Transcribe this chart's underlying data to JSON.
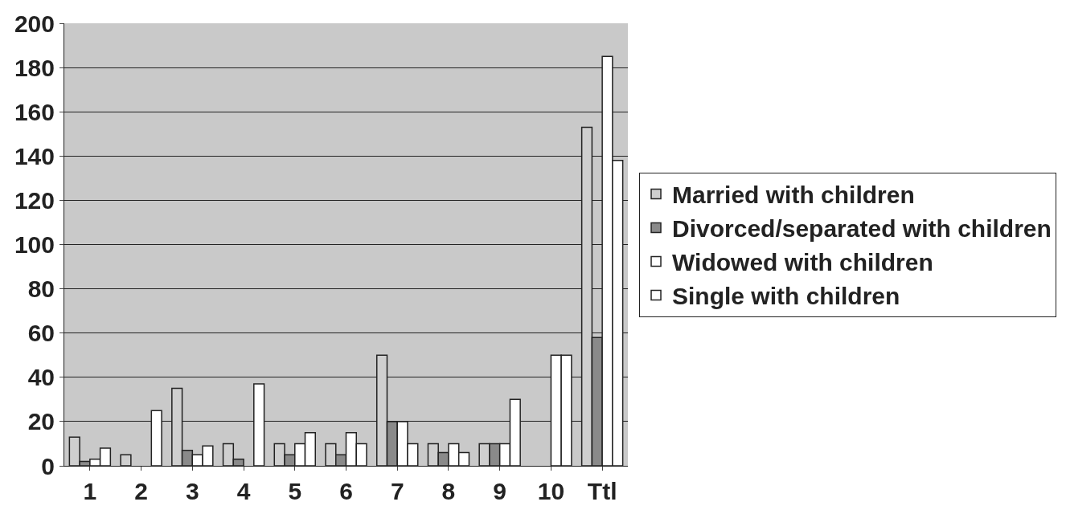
{
  "chart_data": {
    "type": "bar",
    "categories": [
      "1",
      "2",
      "3",
      "4",
      "5",
      "6",
      "7",
      "8",
      "9",
      "10",
      "Ttl"
    ],
    "series": [
      {
        "name": "Married with children",
        "color": "#cfcfcf",
        "values": [
          13,
          5,
          35,
          10,
          10,
          10,
          50,
          10,
          10,
          0,
          153
        ]
      },
      {
        "name": "Divorced/separated with children",
        "color": "#8a8a8a",
        "values": [
          2,
          0,
          7,
          3,
          5,
          5,
          20,
          6,
          10,
          0,
          58
        ]
      },
      {
        "name": "Widowed with children",
        "color": "#ffffff",
        "values": [
          3,
          0,
          5,
          0,
          10,
          15,
          20,
          10,
          10,
          50,
          185
        ]
      },
      {
        "name": "Single with children",
        "color": "#ffffff",
        "values": [
          8,
          25,
          9,
          37,
          15,
          10,
          10,
          6,
          30,
          50,
          138
        ]
      }
    ],
    "ylim": [
      0,
      200
    ],
    "yticks": [
      0,
      20,
      40,
      60,
      80,
      100,
      120,
      140,
      160,
      180,
      200
    ],
    "grid": "y",
    "legend": "right"
  }
}
